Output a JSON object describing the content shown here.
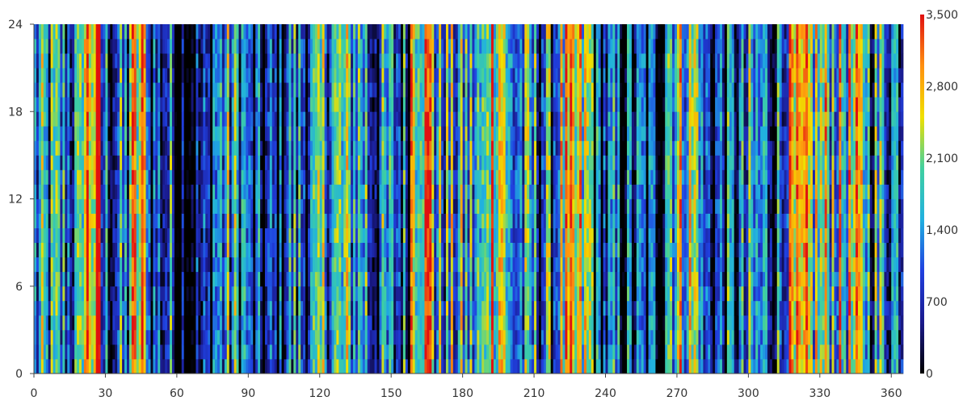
{
  "chart_data": {
    "type": "heatmap",
    "title": "",
    "xlabel": "",
    "ylabel": "",
    "xlim": [
      0,
      365
    ],
    "ylim": [
      0,
      24
    ],
    "x_ticks": [
      "0",
      "30",
      "60",
      "90",
      "120",
      "150",
      "180",
      "210",
      "240",
      "270",
      "300",
      "330",
      "360"
    ],
    "y_ticks": [
      "0",
      "6",
      "12",
      "18",
      "24"
    ],
    "colorbar": {
      "min": 0,
      "max": 3500,
      "ticks": [
        "0",
        "700",
        "1,400",
        "2,100",
        "2,800",
        "3,500"
      ],
      "colors": [
        "#000000",
        "#1a1a8c",
        "#2040e0",
        "#20b0e0",
        "#40d0a0",
        "#f0e000",
        "#ff9010",
        "#e01010"
      ]
    },
    "grid": false,
    "column_profile": [
      {
        "day_start": 0,
        "day_end": 20,
        "value": 1200
      },
      {
        "day_start": 20,
        "day_end": 28,
        "value": 2800
      },
      {
        "day_start": 28,
        "day_end": 40,
        "value": 1000
      },
      {
        "day_start": 40,
        "day_end": 48,
        "value": 2300
      },
      {
        "day_start": 48,
        "day_end": 60,
        "value": 900
      },
      {
        "day_start": 60,
        "day_end": 75,
        "value": 300
      },
      {
        "day_start": 75,
        "day_end": 90,
        "value": 1300
      },
      {
        "day_start": 90,
        "day_end": 105,
        "value": 400
      },
      {
        "day_start": 105,
        "day_end": 120,
        "value": 1100
      },
      {
        "day_start": 120,
        "day_end": 140,
        "value": 1600
      },
      {
        "day_start": 140,
        "day_end": 158,
        "value": 1000
      },
      {
        "day_start": 158,
        "day_end": 168,
        "value": 2800
      },
      {
        "day_start": 168,
        "day_end": 190,
        "value": 1400
      },
      {
        "day_start": 190,
        "day_end": 198,
        "value": 2800
      },
      {
        "day_start": 198,
        "day_end": 220,
        "value": 1200
      },
      {
        "day_start": 220,
        "day_end": 235,
        "value": 2000
      },
      {
        "day_start": 235,
        "day_end": 265,
        "value": 700
      },
      {
        "day_start": 265,
        "day_end": 280,
        "value": 2100
      },
      {
        "day_start": 280,
        "day_end": 300,
        "value": 800
      },
      {
        "day_start": 300,
        "day_end": 315,
        "value": 1100
      },
      {
        "day_start": 315,
        "day_end": 350,
        "value": 2000
      },
      {
        "day_start": 350,
        "day_end": 365,
        "value": 1400
      }
    ]
  }
}
